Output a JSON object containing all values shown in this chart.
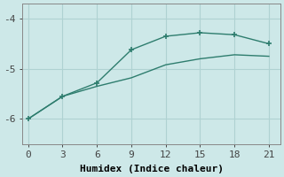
{
  "line1_x": [
    0,
    3,
    6,
    9,
    12,
    15,
    18,
    21
  ],
  "line1_y": [
    -6.0,
    -5.55,
    -5.28,
    -4.62,
    -4.35,
    -4.28,
    -4.32,
    -4.5
  ],
  "line2_x": [
    0,
    3,
    6,
    9,
    12,
    15,
    18,
    21
  ],
  "line2_y": [
    -6.0,
    -5.55,
    -5.35,
    -5.18,
    -4.92,
    -4.8,
    -4.72,
    -4.75
  ],
  "color": "#2e7d6e",
  "bg_color": "#cde8e8",
  "grid_color": "#afd2d2",
  "xlabel": "Humidex (Indice chaleur)",
  "xlim": [
    -0.5,
    22
  ],
  "ylim": [
    -6.5,
    -3.7
  ],
  "xticks": [
    0,
    3,
    6,
    9,
    12,
    15,
    18,
    21
  ],
  "yticks": [
    -6,
    -5,
    -4
  ],
  "marker": "+",
  "markersize": 5,
  "linewidth": 1.0,
  "xlabel_fontsize": 8,
  "tick_fontsize": 8
}
